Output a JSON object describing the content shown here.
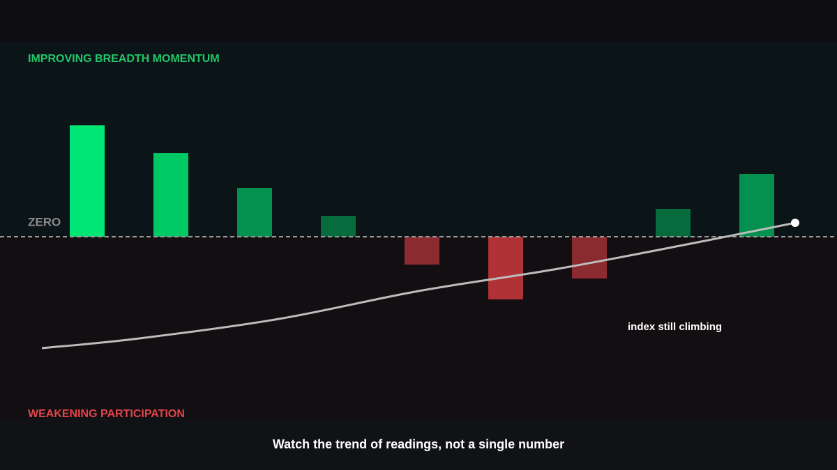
{
  "chart_data": {
    "type": "bar",
    "title": "Watch the trend of readings, not a single number",
    "upper_label": "IMPROVING BREADTH MOMENTUM",
    "lower_label": "WEAKENING PARTICIPATION",
    "zero_label": "ZERO",
    "annotation": "index still climbing",
    "categories": [
      null,
      null,
      null,
      null,
      null,
      null,
      null,
      null,
      null
    ],
    "values": [
      160,
      120,
      70,
      30,
      -40,
      -90,
      -60,
      40,
      90
    ],
    "colors": [
      "#00e676",
      "#00c864",
      "#04914f",
      "#066b3d",
      "#8b2a2f",
      "#b03236",
      "#8b2a2f",
      "#066b3d",
      "#04914f"
    ],
    "ylim": [
      -260,
      280
    ],
    "line": {
      "color": "#bdbdbd",
      "xlim": [
        0,
        1200
      ],
      "x": [
        60,
        200,
        400,
        600,
        800,
        1000,
        1140
      ],
      "values": [
        -160,
        -146,
        -118,
        -78,
        -46,
        -8,
        20
      ]
    }
  }
}
